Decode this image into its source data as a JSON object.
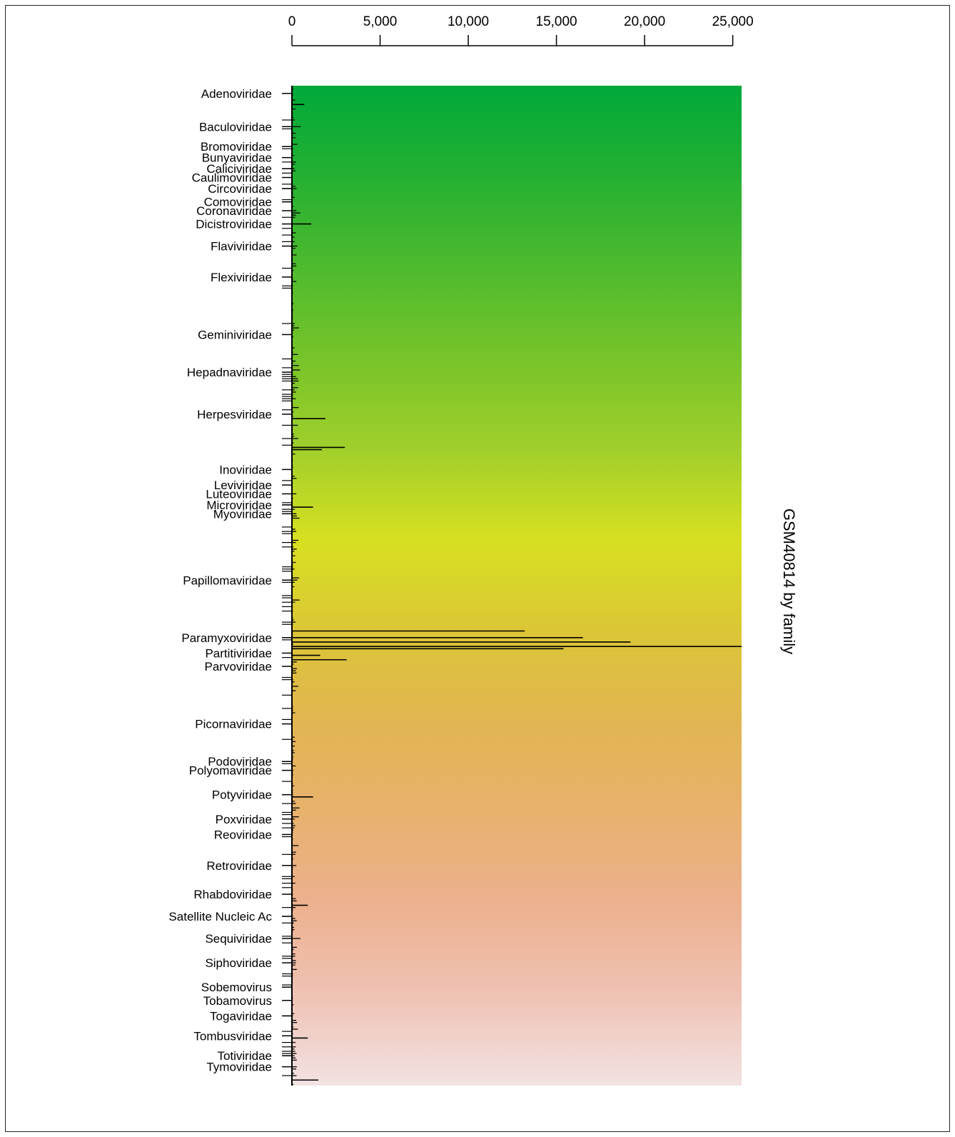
{
  "chart_data": {
    "type": "bar",
    "orientation": "horizontal",
    "side_label": "GSM40814 by family",
    "xticks": [
      "0",
      "5,000",
      "10,000",
      "15,000",
      "20,000",
      "25,000"
    ],
    "xlim": [
      0,
      25500
    ],
    "categories": [
      "Adenoviridae",
      "Baculoviridae",
      "Bromoviridae",
      "Bunyaviridae",
      "Caliciviridae",
      "Caulimoviridae",
      "Circoviridae",
      "Comoviridae",
      "Coronaviridae",
      "Dicistroviridae",
      "Flaviviridae",
      "Flexiviridae",
      "Geminiviridae",
      "Hepadnaviridae",
      "Herpesviridae",
      "Inoviridae",
      "Leviviridae",
      "Luteoviridae",
      "Microviridae",
      "Myoviridae",
      "Papillomaviridae",
      "Paramyxoviridae",
      "Partitiviridae",
      "Parvoviridae",
      "Picornaviridae",
      "Podoviridae",
      "Polyomaviridae",
      "Potyviridae",
      "Poxviridae",
      "Reoviridae",
      "Retroviridae",
      "Rhabdoviridae",
      "Satellite Nucleic Ac",
      "Sequiviridae",
      "Siphoviridae",
      "Sobemovirus",
      "Tobamovirus",
      "Togaviridae",
      "Tombusviridae",
      "Totiviridae",
      "Tymoviridae"
    ],
    "category_rows": [
      3,
      18,
      27,
      32,
      37,
      41,
      46,
      52,
      56,
      62,
      72,
      86,
      112,
      129,
      148,
      173,
      180,
      184,
      189,
      193,
      223,
      249,
      256,
      262,
      288,
      305,
      309,
      320,
      331,
      338,
      352,
      365,
      375,
      385,
      396,
      407,
      413,
      420,
      429,
      438,
      443
    ],
    "notable_bars": [
      {
        "row": 8,
        "value": 700
      },
      {
        "row": 62,
        "value": 1100
      },
      {
        "row": 150,
        "value": 1900
      },
      {
        "row": 163,
        "value": 3000
      },
      {
        "row": 164,
        "value": 1700
      },
      {
        "row": 190,
        "value": 1200
      },
      {
        "row": 246,
        "value": 13200
      },
      {
        "row": 249,
        "value": 16500
      },
      {
        "row": 251,
        "value": 19200
      },
      {
        "row": 253,
        "value": 25500
      },
      {
        "row": 254,
        "value": 15400
      },
      {
        "row": 257,
        "value": 1600
      },
      {
        "row": 259,
        "value": 3100
      },
      {
        "row": 321,
        "value": 1200
      },
      {
        "row": 370,
        "value": 900
      },
      {
        "row": 430,
        "value": 900
      },
      {
        "row": 449,
        "value": 1500
      }
    ],
    "color_bands": [
      "#00a93a",
      "#25b032",
      "#4eba2e",
      "#77c42a",
      "#a1cf2b",
      "#d7e021",
      "#dbc636",
      "#e2b552",
      "#e8b16d",
      "#ecb18e",
      "#efc2b4",
      "#f2e2e2"
    ]
  }
}
